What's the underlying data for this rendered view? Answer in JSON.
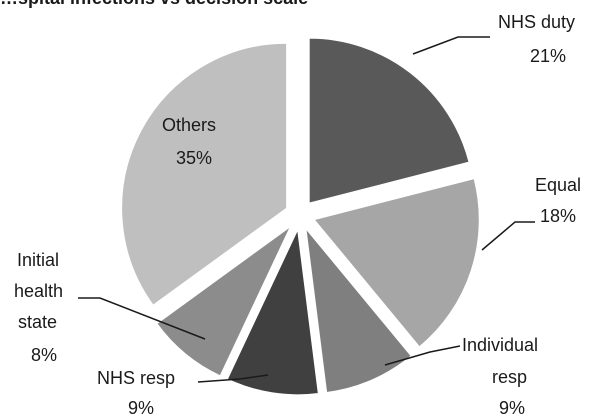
{
  "chart_data": {
    "type": "pie",
    "title": "…spital infections vs decision scale",
    "start_category": "NHS duty",
    "direction": "clockwise",
    "exploded": true,
    "slices": [
      {
        "label": "NHS duty",
        "value": 21,
        "display": "21%",
        "color": "#595959"
      },
      {
        "label": "Equal",
        "value": 18,
        "display": "18%",
        "color": "#a6a6a6"
      },
      {
        "label": "Individual resp",
        "value": 9,
        "display": "9%",
        "color": "#7f7f7f"
      },
      {
        "label": "NHS resp",
        "value": 9,
        "display": "9%",
        "color": "#404040"
      },
      {
        "label": "Initial health state",
        "value": 8,
        "display": "8%",
        "color": "#8c8c8c"
      },
      {
        "label": "Others",
        "value": 35,
        "display": "35%",
        "color": "#bfbfbf"
      }
    ]
  },
  "labels": {
    "nhs_duty": {
      "l1": "NHS duty",
      "pct": "21%"
    },
    "equal": {
      "l1": "Equal",
      "pct": "18%"
    },
    "individual": {
      "l1": "Individual",
      "l2": "resp",
      "pct": "9%"
    },
    "nhs_resp": {
      "l1": "NHS resp",
      "pct": "9%"
    },
    "initial": {
      "l1": "Initial",
      "l2": "health",
      "l3": "state",
      "pct": "8%"
    },
    "others": {
      "l1": "Others",
      "pct": "35%"
    }
  }
}
